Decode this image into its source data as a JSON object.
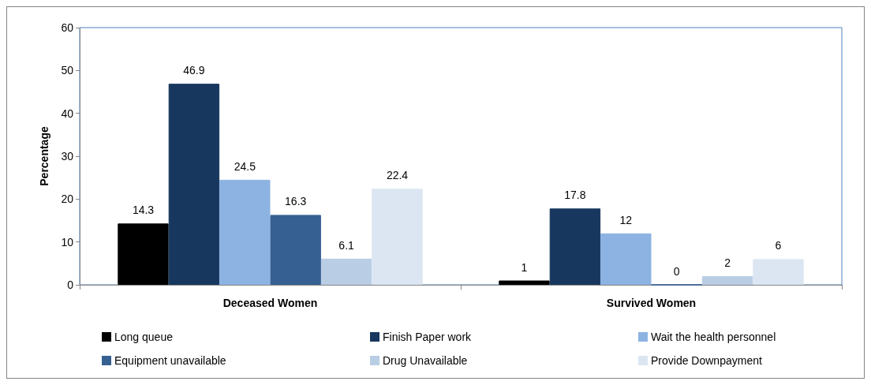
{
  "chart_data": {
    "type": "bar",
    "ylabel": "Percentage",
    "categories": [
      "Deceased Women",
      "Survived Women"
    ],
    "series": [
      {
        "name": "Long queue",
        "color": "#000000",
        "values": [
          14.3,
          1
        ]
      },
      {
        "name": "Finish Paper work",
        "color": "#17375e",
        "values": [
          46.9,
          17.8
        ]
      },
      {
        "name": "Wait the health personnel",
        "color": "#8db3e2",
        "values": [
          24.5,
          12
        ]
      },
      {
        "name": "Equipment unavailable",
        "color": "#366092",
        "values": [
          16.3,
          0
        ]
      },
      {
        "name": "Drug Unavailable",
        "color": "#b9cde5",
        "values": [
          6.1,
          2
        ]
      },
      {
        "name": "Provide Downpayment",
        "color": "#dce6f2",
        "values": [
          22.4,
          6
        ]
      }
    ],
    "ylim": [
      0,
      60
    ],
    "yticks": [
      0,
      10,
      20,
      30,
      40,
      50,
      60
    ],
    "data_labels": true,
    "legend": "bottom",
    "grid": false
  }
}
